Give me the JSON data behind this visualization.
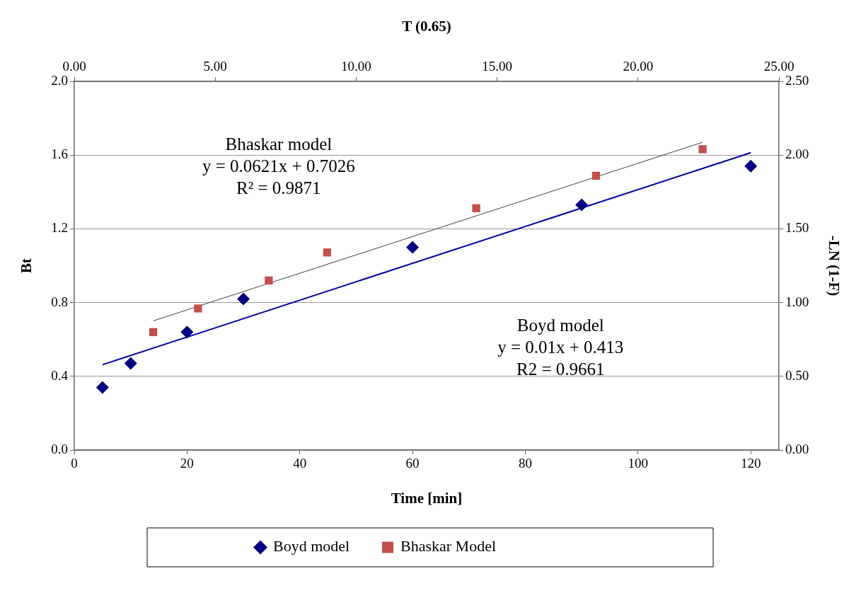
{
  "chart_data": [
    {
      "type": "scatter",
      "xlabel": "Time [min]",
      "ylabel": "Bt",
      "xlim": [
        0,
        125
      ],
      "xticks": [
        0,
        20,
        40,
        60,
        80,
        100,
        120
      ],
      "ylim": [
        0,
        2
      ],
      "yticks": [
        {
          "value": 0,
          "label": "0.0"
        },
        {
          "value": 0.4,
          "label": "0.4"
        },
        {
          "value": 0.8,
          "label": "0.8"
        },
        {
          "value": 1.2,
          "label": "1.2"
        },
        {
          "value": 1.6,
          "label": "1.6"
        },
        {
          "value": 2,
          "label": "2.0"
        }
      ],
      "grid": "y",
      "legend": "bottom",
      "annotations": [
        "Boyd model\ny = 0.01x + 0.413\nR2 = 0.9661"
      ],
      "series": [
        {
          "name": "Boyd model",
          "marker": "diamond",
          "color": "#000080",
          "x": [
            5,
            10,
            20,
            30,
            60,
            90,
            120
          ],
          "values": [
            0.34,
            0.47,
            0.64,
            0.82,
            1.1,
            1.33,
            1.54
          ]
        },
        {
          "type": "line",
          "marker": "none",
          "color": "#0000a0",
          "x": [
            5,
            120
          ],
          "values": [
            0.463,
            1.613
          ]
        }
      ]
    },
    {
      "type": "scatter",
      "xlabel": "T (0.65)",
      "ylabel": "-LN (1-F)",
      "xlim": [
        0,
        25
      ],
      "xticks": [
        {
          "value": 0,
          "label": "0.00"
        },
        {
          "value": 5,
          "label": "5.00"
        },
        {
          "value": 10,
          "label": "10.00"
        },
        {
          "value": 15,
          "label": "15.00"
        },
        {
          "value": 20,
          "label": "20.00"
        },
        {
          "value": 25,
          "label": "25.00"
        }
      ],
      "ylim": [
        0,
        2.5
      ],
      "yticks": [
        {
          "value": 0,
          "label": "0.00"
        },
        {
          "value": 0.5,
          "label": "0.50"
        },
        {
          "value": 1,
          "label": "1.00"
        },
        {
          "value": 1.5,
          "label": "1.50"
        },
        {
          "value": 2,
          "label": "2.00"
        },
        {
          "value": 2.5,
          "label": "2.50"
        }
      ],
      "legend": "bottom",
      "annotations": [
        "Bhaskar model\ny = 0.0621x + 0.7026\nR² = 0.9871"
      ],
      "series": [
        {
          "name": "Bhaskar Model",
          "marker": "square",
          "color": "#c0504d",
          "x": [
            2.8,
            4.39,
            6.9,
            8.97,
            14.26,
            18.51,
            22.29
          ],
          "values": [
            0.8,
            0.96,
            1.15,
            1.34,
            1.64,
            1.86,
            2.04
          ]
        },
        {
          "type": "line",
          "marker": "none",
          "color": "#404040",
          "x": [
            2.8,
            22.29
          ],
          "values": [
            0.876,
            2.087
          ]
        }
      ]
    }
  ]
}
